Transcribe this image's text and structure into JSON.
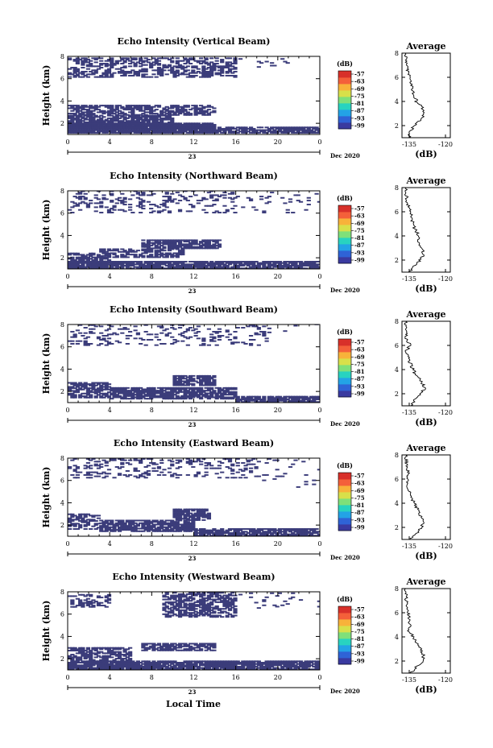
{
  "colors": {
    "echo": "#3b3c7a",
    "axis": "#000000",
    "colorbar": [
      "#3a3aa0",
      "#2f63d6",
      "#23a3e6",
      "#28d3c0",
      "#7fe07a",
      "#d8e04a",
      "#f8b23a",
      "#f4603a",
      "#d8302a"
    ]
  },
  "figure": {
    "xlabel_bottom": "Local Time"
  },
  "chart_data": [
    {
      "type": "heatmap",
      "title": "Echo Intensity (Vertical Beam)",
      "ylabel": "Height (km)",
      "xlim": [
        0,
        24
      ],
      "ylim": [
        1,
        8
      ],
      "xticks": [
        "0",
        "4",
        "8",
        "12",
        "16",
        "20",
        "0"
      ],
      "yticks": [
        "2",
        "4",
        "6",
        "8"
      ],
      "date_day": "23",
      "date_label": "Dec 2020",
      "colorbar": {
        "unit": "(dB)",
        "ticks": [
          "-57",
          "-63",
          "-69",
          "-75",
          "-81",
          "-87",
          "-93",
          "-99"
        ]
      },
      "grid": false,
      "average": {
        "title": "Average",
        "xlabel": "(dB)",
        "xticks": [
          "-135",
          "-120"
        ],
        "yticks": [
          "2",
          "4",
          "6",
          "8"
        ],
        "profile": [
          [
            -135.2,
            1
          ],
          [
            -134.5,
            1.5
          ],
          [
            -133,
            2
          ],
          [
            -130,
            2.5
          ],
          [
            -128.5,
            3
          ],
          [
            -129.5,
            3.5
          ],
          [
            -132,
            4
          ],
          [
            -133,
            4.5
          ],
          [
            -133.5,
            5
          ],
          [
            -134,
            5.5
          ],
          [
            -135,
            6
          ],
          [
            -135.5,
            6.5
          ],
          [
            -136,
            7
          ],
          [
            -136.2,
            7.5
          ],
          [
            -136.5,
            8
          ]
        ]
      },
      "echo_regions": [
        {
          "t": [
            0,
            16
          ],
          "h": [
            6.1,
            7.9
          ],
          "d": 0.45
        },
        {
          "t": [
            16,
            21
          ],
          "h": [
            7.0,
            7.8
          ],
          "d": 0.06
        },
        {
          "t": [
            0,
            13.8
          ],
          "h": [
            2.7,
            3.6
          ],
          "d": 0.6
        },
        {
          "t": [
            0,
            10
          ],
          "h": [
            1.8,
            2.7
          ],
          "d": 0.8
        },
        {
          "t": [
            0,
            14
          ],
          "h": [
            1.1,
            2.0
          ],
          "d": 0.95
        },
        {
          "t": [
            14,
            24
          ],
          "h": [
            1.1,
            1.6
          ],
          "d": 0.8
        }
      ]
    },
    {
      "type": "heatmap",
      "title": "Echo Intensity (Northward Beam)",
      "ylabel": "Height (km)",
      "xlim": [
        0,
        24
      ],
      "ylim": [
        1,
        8
      ],
      "xticks": [
        "0",
        "4",
        "8",
        "12",
        "16",
        "20",
        "0"
      ],
      "yticks": [
        "2",
        "4",
        "6",
        "8"
      ],
      "date_day": "23",
      "date_label": "Dec 2020",
      "colorbar": {
        "unit": "(dB)",
        "ticks": [
          "-57",
          "-63",
          "-69",
          "-75",
          "-81",
          "-87",
          "-93",
          "-99"
        ]
      },
      "grid": false,
      "average": {
        "title": "Average",
        "xlabel": "(dB)",
        "xticks": [
          "-135",
          "-120"
        ],
        "yticks": [
          "2",
          "4",
          "6",
          "8"
        ],
        "profile": [
          [
            -134.8,
            1
          ],
          [
            -133,
            1.5
          ],
          [
            -130.5,
            2
          ],
          [
            -129,
            2.5
          ],
          [
            -130,
            3
          ],
          [
            -131.5,
            3.5
          ],
          [
            -131,
            4
          ],
          [
            -132.5,
            4.5
          ],
          [
            -133.5,
            5
          ],
          [
            -134,
            5.5
          ],
          [
            -134.6,
            6
          ],
          [
            -135.5,
            6.5
          ],
          [
            -136,
            7
          ],
          [
            -136.2,
            7.5
          ],
          [
            -136.5,
            8
          ]
        ]
      },
      "echo_regions": [
        {
          "t": [
            0,
            16
          ],
          "h": [
            6.0,
            8.0
          ],
          "d": 0.18
        },
        {
          "t": [
            16,
            24
          ],
          "h": [
            6.0,
            8.0
          ],
          "d": 0.05
        },
        {
          "t": [
            7,
            14.5
          ],
          "h": [
            2.8,
            3.6
          ],
          "d": 0.75
        },
        {
          "t": [
            3,
            11
          ],
          "h": [
            2.0,
            2.8
          ],
          "d": 0.55
        },
        {
          "t": [
            0,
            4
          ],
          "h": [
            1.5,
            2.4
          ],
          "d": 0.6
        },
        {
          "t": [
            0,
            24
          ],
          "h": [
            1.0,
            1.7
          ],
          "d": 0.85
        }
      ]
    },
    {
      "type": "heatmap",
      "title": "Echo Intensity (Southward Beam)",
      "ylabel": "Height (km)",
      "xlim": [
        0,
        24
      ],
      "ylim": [
        1,
        8
      ],
      "xticks": [
        "0",
        "4",
        "8",
        "12",
        "16",
        "20",
        "0"
      ],
      "yticks": [
        "2",
        "4",
        "6",
        "8"
      ],
      "date_day": "23",
      "date_label": "Dec 2020",
      "colorbar": {
        "unit": "(dB)",
        "ticks": [
          "-57",
          "-63",
          "-69",
          "-75",
          "-81",
          "-87",
          "-93",
          "-99"
        ]
      },
      "grid": false,
      "average": {
        "title": "Average",
        "xlabel": "(dB)",
        "xticks": [
          "-135",
          "-120"
        ],
        "yticks": [
          "2",
          "4",
          "6",
          "8"
        ],
        "profile": [
          [
            -134.5,
            1
          ],
          [
            -132.5,
            1.5
          ],
          [
            -130,
            2
          ],
          [
            -128.5,
            2.5
          ],
          [
            -130,
            3
          ],
          [
            -132,
            3.5
          ],
          [
            -133.5,
            4
          ],
          [
            -134.5,
            4.5
          ],
          [
            -135.5,
            5
          ],
          [
            -136.5,
            5.5
          ],
          [
            -134.5,
            6
          ],
          [
            -136,
            6.5
          ],
          [
            -136.5,
            7
          ],
          [
            -136.3,
            7.5
          ],
          [
            -136.5,
            8
          ]
        ]
      },
      "echo_regions": [
        {
          "t": [
            0,
            19
          ],
          "h": [
            6.1,
            8.0
          ],
          "d": 0.16
        },
        {
          "t": [
            19,
            24
          ],
          "h": [
            7.0,
            8.0
          ],
          "d": 0.04
        },
        {
          "t": [
            10,
            14
          ],
          "h": [
            2.5,
            3.4
          ],
          "d": 0.75
        },
        {
          "t": [
            0,
            4
          ],
          "h": [
            1.4,
            2.8
          ],
          "d": 0.6
        },
        {
          "t": [
            4,
            16
          ],
          "h": [
            1.3,
            2.3
          ],
          "d": 0.8
        },
        {
          "t": [
            16,
            24
          ],
          "h": [
            1.0,
            1.6
          ],
          "d": 0.8
        }
      ]
    },
    {
      "type": "heatmap",
      "title": "Echo Intensity (Eastward Beam)",
      "ylabel": "Height (km)",
      "xlim": [
        0,
        24
      ],
      "ylim": [
        1,
        8
      ],
      "xticks": [
        "0",
        "4",
        "8",
        "12",
        "16",
        "20",
        "0"
      ],
      "yticks": [
        "2",
        "4",
        "6",
        "8"
      ],
      "date_day": "23",
      "date_label": "Dec 2020",
      "colorbar": {
        "unit": "(dB)",
        "ticks": [
          "-57",
          "-63",
          "-69",
          "-75",
          "-81",
          "-87",
          "-93",
          "-99"
        ]
      },
      "grid": false,
      "average": {
        "title": "Average",
        "xlabel": "(dB)",
        "xticks": [
          "-135",
          "-120"
        ],
        "yticks": [
          "2",
          "4",
          "6",
          "8"
        ],
        "profile": [
          [
            -134.5,
            1
          ],
          [
            -132,
            1.5
          ],
          [
            -130,
            2
          ],
          [
            -129,
            2.5
          ],
          [
            -130.5,
            3
          ],
          [
            -131.5,
            3.5
          ],
          [
            -133,
            4
          ],
          [
            -134,
            4.5
          ],
          [
            -135,
            5
          ],
          [
            -135.5,
            5.5
          ],
          [
            -136,
            6
          ],
          [
            -135.5,
            6.5
          ],
          [
            -136,
            7
          ],
          [
            -136.3,
            7.5
          ],
          [
            -136.5,
            8
          ]
        ]
      },
      "echo_regions": [
        {
          "t": [
            0,
            18
          ],
          "h": [
            6.2,
            8.0
          ],
          "d": 0.2
        },
        {
          "t": [
            18,
            24
          ],
          "h": [
            5.0,
            8.0
          ],
          "d": 0.05
        },
        {
          "t": [
            10,
            13.5
          ],
          "h": [
            2.4,
            3.4
          ],
          "d": 0.8
        },
        {
          "t": [
            0,
            3
          ],
          "h": [
            1.6,
            3.0
          ],
          "d": 0.55
        },
        {
          "t": [
            3,
            12
          ],
          "h": [
            1.4,
            2.4
          ],
          "d": 0.75
        },
        {
          "t": [
            12,
            24
          ],
          "h": [
            1.0,
            1.7
          ],
          "d": 0.8
        }
      ]
    },
    {
      "type": "heatmap",
      "title": "Echo Intensity (Westward Beam)",
      "ylabel": "Height (km)",
      "xlim": [
        0,
        24
      ],
      "ylim": [
        1,
        8
      ],
      "xticks": [
        "0",
        "4",
        "8",
        "12",
        "16",
        "20",
        "0"
      ],
      "yticks": [
        "2",
        "4",
        "6",
        "8"
      ],
      "date_day": "23",
      "date_label": "Dec 2020",
      "colorbar": {
        "unit": "(dB)",
        "ticks": [
          "-57",
          "-63",
          "-69",
          "-75",
          "-81",
          "-87",
          "-93",
          "-99"
        ]
      },
      "grid": false,
      "average": {
        "title": "Average",
        "xlabel": "(dB)",
        "xticks": [
          "-135",
          "-120"
        ],
        "yticks": [
          "2",
          "4",
          "6",
          "8"
        ],
        "profile": [
          [
            -134.5,
            1
          ],
          [
            -132,
            1.5
          ],
          [
            -129.5,
            2
          ],
          [
            -129,
            2.5
          ],
          [
            -130.5,
            3
          ],
          [
            -132,
            3.5
          ],
          [
            -133.5,
            4
          ],
          [
            -135,
            4.5
          ],
          [
            -134.5,
            5
          ],
          [
            -135,
            5.5
          ],
          [
            -135.5,
            6
          ],
          [
            -136,
            6.5
          ],
          [
            -136.2,
            7
          ],
          [
            -136.4,
            7.5
          ],
          [
            -136.5,
            8
          ]
        ]
      },
      "echo_regions": [
        {
          "t": [
            0,
            4
          ],
          "h": [
            6.6,
            7.8
          ],
          "d": 0.35
        },
        {
          "t": [
            9,
            16
          ],
          "h": [
            5.7,
            7.9
          ],
          "d": 0.55
        },
        {
          "t": [
            16,
            24
          ],
          "h": [
            6.5,
            8.0
          ],
          "d": 0.05
        },
        {
          "t": [
            7,
            14
          ],
          "h": [
            2.7,
            3.4
          ],
          "d": 0.75
        },
        {
          "t": [
            0,
            6
          ],
          "h": [
            1.6,
            3.0
          ],
          "d": 0.6
        },
        {
          "t": [
            0,
            24
          ],
          "h": [
            1.0,
            1.8
          ],
          "d": 0.85
        }
      ]
    }
  ]
}
